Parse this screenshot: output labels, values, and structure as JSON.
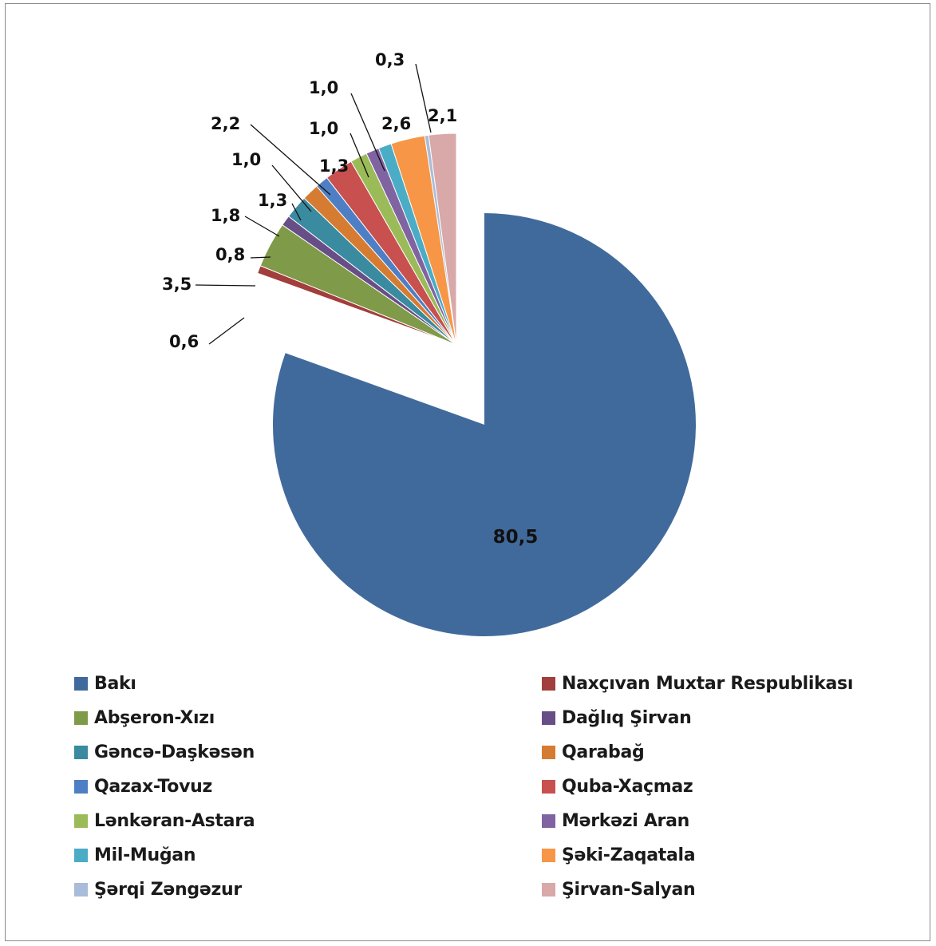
{
  "chart_data": {
    "type": "pie",
    "title": "",
    "legend_position": "bottom",
    "unit": "",
    "slices": [
      {
        "label": "Bakı",
        "value": 80.5,
        "display": "80,5",
        "color": "#416A9C"
      },
      {
        "label": "Naxçıvan Muxtar Respublikası",
        "value": 0.6,
        "display": "0,6",
        "color": "#A23E3B"
      },
      {
        "label": "Abşeron-Xızı",
        "value": 3.5,
        "display": "3,5",
        "color": "#7F9A48"
      },
      {
        "label": "Dağlıq Şirvan",
        "value": 0.8,
        "display": "0,8",
        "color": "#684E86"
      },
      {
        "label": "Gəncə-Daşkəsən",
        "value": 1.8,
        "display": "1,8",
        "color": "#3A8AA0"
      },
      {
        "label": "Qarabağ",
        "value": 1.3,
        "display": "1,3",
        "color": "#D67C32"
      },
      {
        "label": "Qazax-Tovuz",
        "value": 1.0,
        "display": "1,0",
        "color": "#4E7FC4"
      },
      {
        "label": "Quba-Xaçmaz",
        "value": 2.2,
        "display": "2,2",
        "color": "#C8504E"
      },
      {
        "label": "Lənkəran-Astara",
        "value": 1.3,
        "display": "1,3",
        "color": "#9BBB59"
      },
      {
        "label": "Mərkəzi Aran",
        "value": 1.0,
        "display": "1,0",
        "color": "#8064A2"
      },
      {
        "label": "Mil-Muğan",
        "value": 1.0,
        "display": "1,0",
        "color": "#4BACC6"
      },
      {
        "label": "Şəki-Zaqatala",
        "value": 2.6,
        "display": "2,6",
        "color": "#F79646"
      },
      {
        "label": "Şərqi Zəngəzur",
        "value": 0.3,
        "display": "0,3",
        "color": "#A9BCD9"
      },
      {
        "label": "Şirvan-Salyan",
        "value": 2.1,
        "display": "2,1",
        "color": "#D9A8A8"
      }
    ]
  }
}
